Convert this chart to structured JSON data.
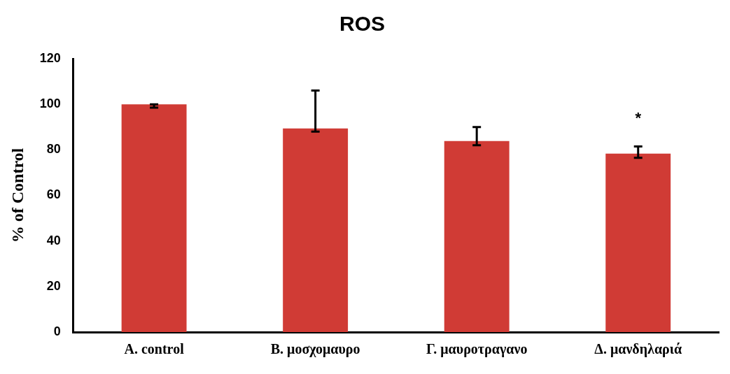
{
  "chart_data": {
    "type": "bar",
    "title": "ROS",
    "ylabel": "% of Control",
    "categories": [
      "A. control",
      "B. μοσχομαυρο",
      "Γ. μαυροτραγανο",
      "Δ. μανδηλαριά"
    ],
    "values": [
      100,
      89.4,
      83.9,
      78.3
    ],
    "color": "#d03b35",
    "errors": [
      [
        98.5,
        100
      ],
      [
        88,
        106
      ],
      [
        82,
        90
      ],
      [
        76.5,
        81.5
      ]
    ],
    "ylim": [
      0,
      120
    ],
    "yticks": [
      0,
      20,
      40,
      60,
      80,
      100,
      120
    ],
    "grid": false,
    "annotations": [
      "*"
    ]
  }
}
